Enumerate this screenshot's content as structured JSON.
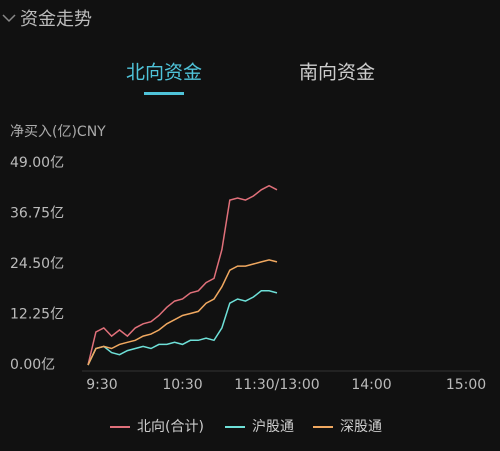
{
  "header": {
    "title": "资金走势"
  },
  "tabs": [
    {
      "label": "北向资金",
      "active": true
    },
    {
      "label": "南向资金",
      "active": false
    }
  ],
  "chart_data": {
    "type": "line",
    "y_label": "净买入(亿)CNY",
    "x": [
      0,
      5,
      10,
      15,
      20,
      25,
      30,
      35,
      40,
      45,
      50,
      55,
      60,
      65,
      70,
      75,
      80,
      85,
      90,
      95,
      100,
      105,
      110,
      115,
      120
    ],
    "xlim": [
      0,
      240
    ],
    "xticks": [
      {
        "value": 0,
        "label": "9:30"
      },
      {
        "value": 60,
        "label": "10:30"
      },
      {
        "value": 120,
        "label": "11:30/13:00"
      },
      {
        "value": 180,
        "label": "14:00"
      },
      {
        "value": 240,
        "label": "15:00"
      }
    ],
    "ylim": [
      0,
      49
    ],
    "yticks": [
      {
        "value": 0,
        "label": "0.00亿"
      },
      {
        "value": 12.25,
        "label": "12.25亿"
      },
      {
        "value": 24.5,
        "label": "24.50亿"
      },
      {
        "value": 36.75,
        "label": "36.75亿"
      },
      {
        "value": 49,
        "label": "49.00亿"
      }
    ],
    "grid": false,
    "series": [
      {
        "name": "北向(合计)",
        "color": "#e0707a",
        "values": [
          0,
          8,
          9,
          7,
          8.5,
          7,
          9,
          10,
          10.5,
          12,
          14,
          15.5,
          16,
          17.5,
          18,
          20,
          21,
          28,
          40,
          40.5,
          40,
          41,
          42.5,
          43.5,
          42.5
        ]
      },
      {
        "name": "沪股通",
        "color": "#6ee0d8",
        "values": [
          0,
          4,
          4.5,
          3,
          2.5,
          3.5,
          4,
          4.5,
          4,
          5,
          5,
          5.5,
          5,
          6,
          6,
          6.5,
          6,
          9,
          15,
          16,
          15.5,
          16.5,
          18,
          18,
          17.5
        ]
      },
      {
        "name": "深股通",
        "color": "#f0a860",
        "values": [
          0,
          4,
          4.5,
          4,
          5,
          5.5,
          6,
          7,
          7.5,
          8.5,
          10,
          11,
          12,
          12.5,
          13,
          15,
          16,
          19,
          23,
          24,
          24,
          24.5,
          25,
          25.5,
          25
        ]
      }
    ]
  }
}
